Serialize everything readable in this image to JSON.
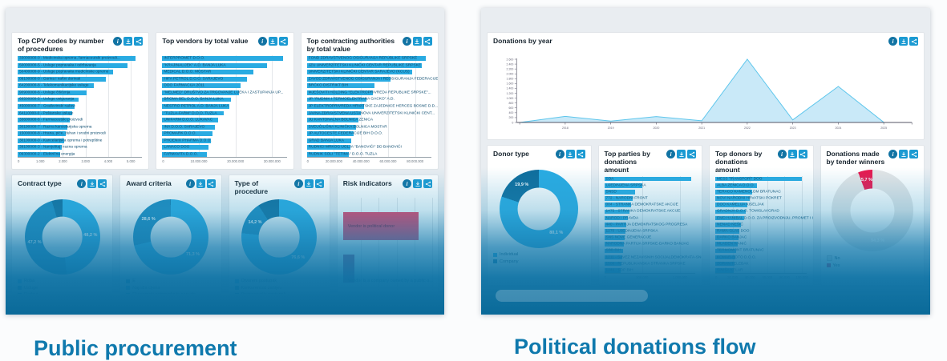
{
  "page": {
    "left_heading": "Public procurement",
    "right_heading": "Political donations flow"
  },
  "icons": {
    "info": "info-icon",
    "download": "download-icon",
    "share": "share-icon"
  },
  "chart_data": {
    "cpv": {
      "type": "hbar",
      "title": "Top CPV codes by number of procedures",
      "bar_color": "#29abe2",
      "axis_max": 5500,
      "ticks": [
        {
          "label": "0",
          "value": 0
        },
        {
          "label": "1.000",
          "value": 1000
        },
        {
          "label": "2.000",
          "value": 2000
        },
        {
          "label": "3.000",
          "value": 3000
        },
        {
          "label": "4.000",
          "value": 4000
        },
        {
          "label": "5.000",
          "value": 5000
        }
      ],
      "items": [
        {
          "label": "33000000-0 - Medicinska oprema, farmaceutski proizvodi...",
          "value": 5200
        },
        {
          "label": "50000000-5 - Usluge popravaka i održavanja",
          "value": 4850
        },
        {
          "label": "50400000-9 - Usluge popravaka medicinske opreme",
          "value": 4200
        },
        {
          "label": "09100000-0 - Goriva i naftni derivati",
          "value": 3900
        },
        {
          "label": "64200000-8 - Telekomunikacijske usluge",
          "value": 3350
        },
        {
          "label": "90900000-6 - Usluge čišćenja",
          "value": 3050
        },
        {
          "label": "66500000-5 - Usluge osiguranja",
          "value": 2700
        },
        {
          "label": "45000000-7 - Građevinski radovi",
          "value": 2500
        },
        {
          "label": "64110000-0 - Poštanske usluge",
          "value": 2400
        },
        {
          "label": "33600000-6 - Farmaceutski proizvodi",
          "value": 2300
        },
        {
          "label": "30190000-7 - Razna kancelarijska oprema",
          "value": 2200
        },
        {
          "label": "15000000-8 - Hrana, piće, duhan i srodni proizvodi",
          "value": 2120
        },
        {
          "label": "30100000-0 - Kancelarijska oprema i potrepštine",
          "value": 2040
        },
        {
          "label": "39100000-3 - Namještaj i razna oprema",
          "value": 1960
        },
        {
          "label": "09300000-2 - Električna energija",
          "value": 1880
        }
      ]
    },
    "vendors": {
      "type": "hbar",
      "title": "Top vendors by total value",
      "bar_color": "#29abe2",
      "axis_max": 34000000,
      "ticks": [
        {
          "label": "0",
          "value": 0
        },
        {
          "label": "10.000.000",
          "value": 10000000
        },
        {
          "label": "20.000.000",
          "value": 20000000
        },
        {
          "label": "30.000.000",
          "value": 30000000
        }
      ],
      "items": [
        {
          "label": "INTERPROMET D.O.O.",
          "value": 33000000
        },
        {
          "label": "\"KRAJINALIJEK\" A.D. BANJA LUKA",
          "value": 28500000
        },
        {
          "label": "MEDICAL D.O.O. MOSTAR",
          "value": 24800000
        },
        {
          "label": "HIFA PETROL D.O.O. SARAJEVO",
          "value": 23200000
        },
        {
          "label": "DOO FARMACIJA 2011",
          "value": 21300000
        },
        {
          "label": "\"MELMED\" DRUŠTVO ZA TRGOVANJE LIJEKA I ZASTUPANJA UP...",
          "value": 20900000
        },
        {
          "label": "BROMA BEL D.O.O. BANJA LUKA",
          "value": 18800000
        },
        {
          "label": "NESTRO PETROL A.D. BANJA LUKA",
          "value": 18400000
        },
        {
          "label": "\"TUZLA-FARM\" D.O.O. TUZLA",
          "value": 16800000
        },
        {
          "label": "UNIFARM D.O.O. LUKAVAC",
          "value": 15200000
        },
        {
          "label": "INA D.O.O. SARAJEVO",
          "value": 14400000
        },
        {
          "label": "PROMARK D.O.O.",
          "value": 13800000
        },
        {
          "label": "PHOENIX PHARMA D.O.O.",
          "value": 13200000
        },
        {
          "label": "LANACO DOO",
          "value": 12700000
        },
        {
          "label": "FARMAVITA D.O.O.",
          "value": 12200000
        }
      ]
    },
    "authorities": {
      "type": "hbar",
      "title": "Top contracting authorities by total value",
      "bar_color": "#29abe2",
      "axis_max": 92000000,
      "ticks": [
        {
          "label": "0",
          "value": 0
        },
        {
          "label": "20.000.000",
          "value": 20000000
        },
        {
          "label": "40.000.000",
          "value": 40000000
        },
        {
          "label": "60.000.000",
          "value": 60000000
        },
        {
          "label": "80.000.000",
          "value": 80000000
        }
      ],
      "items": [
        {
          "label": "FOND ZDRAVSTVENOG OSIGURANJA REPUBLIKE SRPSKE",
          "value": 88000000
        },
        {
          "label": "JZU UNIVERZITETSKI KLINIČKI CENTAR REPUBLIKE SRPSKE",
          "value": 85000000
        },
        {
          "label": "UNIVERZITETSKI KLINIČKI CENTAR SARAJEVO (KCUS)",
          "value": 78000000
        },
        {
          "label": "ZAVOD ZDRAVSTVENOG OSIGURANJA I REOSIGURANJA FEDERACIJE...",
          "value": 62000000
        },
        {
          "label": "BRČKO DISTRIKT BIH",
          "value": 50000000
        },
        {
          "label": "MJEŠOVITI HOLDING \"ELEKTROPRIVREDA REPUBLIKE SRPSKE\"...",
          "value": 48500000
        },
        {
          "label": "JP \"RUDNIK I TERMOELEKTRANA GACKO\" A.D.",
          "value": 44000000
        },
        {
          "label": "JP ELEKTROPRIVREDA HRVATSKE ZAJEDNICE HERCEG BOSNE D.D...",
          "value": 42000000
        },
        {
          "label": "JAVNA ZDRAVSTVENA USTANOVA UNIVERZITETSKI KLINIČKI CENT...",
          "value": 40000000
        },
        {
          "label": "JU KANTONALNA BOLNICA ZENICA",
          "value": 38000000
        },
        {
          "label": "SVEUČILIŠNA KLINIČKA BOLNICA MOSTAR",
          "value": 36500000
        },
        {
          "label": "JP AUTOCESTE FEDERACIJE BIH D.O.O.",
          "value": 34500000
        },
        {
          "label": "GRAD BANJA LUKA",
          "value": 33000000
        },
        {
          "label": "RUDNICI MRKOG UGLJA \"BANOVIĆI\" DD BANOVIĆI",
          "value": 32000000
        },
        {
          "label": "RUDNIK SOLI \"TETIMA\" D.O.O. TUZLA",
          "value": 31000000
        }
      ]
    },
    "contract": {
      "type": "donut",
      "title": "Contract type",
      "size": 94,
      "slices": [
        {
          "label": "Roba",
          "value": 48.2,
          "color": "#29abe2",
          "show_label": true
        },
        {
          "label": "Usluge",
          "value": 47.2,
          "color": "#1b89bd",
          "show_label": true
        },
        {
          "label": "Radovi",
          "value": 4.6,
          "color": "#0f6d9c",
          "show_label": false
        }
      ]
    },
    "award": {
      "type": "donut",
      "title": "Award criteria",
      "size": 94,
      "slices": [
        {
          "label": "Najniža cijena",
          "value": 71.3,
          "color": "#29abe2",
          "show_label": true
        },
        {
          "label": "Ekonomski najpovoljnija ponuda",
          "value": 28.6,
          "color": "#1b89bd",
          "show_label": true
        },
        {
          "label": "E",
          "value": 0.1,
          "color": "#0f6d9c",
          "show_label": false
        }
      ],
      "legend": [
        {
          "label": "E",
          "color": "#0f6d9c"
        },
        {
          "label": "Najniža cijena",
          "color": "#29abe2"
        },
        {
          "label": "Ekonomski najpovoljnija ponuda",
          "color": "#1b89bd"
        }
      ]
    },
    "procedure": {
      "type": "donut",
      "title": "Type of procedure",
      "size": 94,
      "slices": [
        {
          "label": "Otvoreni postupak",
          "value": 76.6,
          "color": "#29abe2",
          "show_label": true
        },
        {
          "label": "Konkurentski zahtjev",
          "value": 14.2,
          "color": "#1b89bd",
          "show_label": true
        },
        {
          "label": "Pregovarački postupak...",
          "value": 9.2,
          "color": "#0f6d9c",
          "show_label": false
        }
      ]
    },
    "risk": {
      "type": "risk",
      "title": "Risk indicators",
      "axis_max": 100,
      "rows": [
        {
          "label": "Vendor is political donor",
          "value": 85,
          "color": "#ee3a60",
          "label_color": "#6e1130"
        },
        {
          "label": "Vendor is a company owned by a public o...",
          "value": 13,
          "color": "#a44a80",
          "label_color": "#0d3a54"
        }
      ]
    },
    "year": {
      "type": "area",
      "title": "Donations by year",
      "fill": "#c9e9f8",
      "line": "#5ec6ec",
      "y_max": 2600,
      "y_ticks": [
        {
          "label": "0",
          "value": 0
        },
        {
          "label": "200",
          "value": 200
        },
        {
          "label": "400",
          "value": 400
        },
        {
          "label": "600",
          "value": 600
        },
        {
          "label": "800",
          "value": 800
        },
        {
          "label": "1.000",
          "value": 1000
        },
        {
          "label": "1.200",
          "value": 1200
        },
        {
          "label": "1.400",
          "value": 1400
        },
        {
          "label": "1.600",
          "value": 1600
        },
        {
          "label": "1.800",
          "value": 1800
        },
        {
          "label": "2.000",
          "value": 2000
        },
        {
          "label": "2.200",
          "value": 2200
        },
        {
          "label": "2.400",
          "value": 2400
        },
        {
          "label": "2.600",
          "value": 2600
        }
      ],
      "points": [
        {
          "year": "2017",
          "value": 0,
          "show_label": false
        },
        {
          "year": "2018",
          "value": 250,
          "show_label": true
        },
        {
          "year": "2019",
          "value": 55,
          "show_label": true
        },
        {
          "year": "2020",
          "value": 245,
          "show_label": true
        },
        {
          "year": "2021",
          "value": 70,
          "show_label": true
        },
        {
          "year": "2022",
          "value": 2600,
          "show_label": true
        },
        {
          "year": "2023",
          "value": 105,
          "show_label": true
        },
        {
          "year": "2024",
          "value": 1480,
          "show_label": true
        },
        {
          "year": "2025",
          "value": 5,
          "show_label": true
        }
      ]
    },
    "donor": {
      "type": "donut",
      "title": "Donor type",
      "size": 98,
      "slices": [
        {
          "label": "Individual",
          "value": 80.1,
          "color": "#29abe2",
          "show_label": true
        },
        {
          "label": "Company",
          "value": 19.9,
          "color": "#0f6d9c",
          "show_label": true
        }
      ]
    },
    "parties": {
      "type": "hbar",
      "title": "Top parties by donations amount",
      "bar_color": "#29abe2",
      "axis_max": 1200000,
      "ticks": [
        {
          "label": "0",
          "value": 0
        },
        {
          "label": "500.000",
          "value": 500000
        },
        {
          "label": "1.000.000",
          "value": 1000000
        }
      ],
      "items": [
        {
          "label": "SDA",
          "value": 1150000
        },
        {
          "label": "UJEDINJENA SRPSKA",
          "value": 500000
        },
        {
          "label": "SNSD",
          "value": 410000
        },
        {
          "label": "772 - NARODNI FRONT",
          "value": 380000
        },
        {
          "label": "004 - STRANKA DEMOKRATSKE AKCIJE",
          "value": 350000
        },
        {
          "label": "1475 - STRANKA DEMOKRATSKE AKCIJE",
          "value": 330000
        },
        {
          "label": "NAROD I PRAVDA",
          "value": 310000
        },
        {
          "label": "440 - PARTIJA DEMOKRATSKOG PROGRESA",
          "value": 295000
        },
        {
          "label": "1270 - UJEDINJENA SRPSKA",
          "value": 280000
        },
        {
          "label": "SNS NOVE GENERACIJE",
          "value": 265000
        },
        {
          "label": "NARODNA PARTIJA SRPSKE-DARKO BANJAC",
          "value": 255000
        },
        {
          "label": "SBB BIH",
          "value": 245000
        },
        {
          "label": "1211 - SAVEZ NEZAVISNIH SOCIJALDEMOKRATA-SNSD",
          "value": 235000
        },
        {
          "label": "1508 - REPUBLIKANSKA STRANKA SRPSKE",
          "value": 225000
        },
        {
          "label": "1444 - SDP BIH",
          "value": 215000
        }
      ]
    },
    "donors": {
      "type": "hbar",
      "title": "Top donors by donations amount",
      "bar_color": "#29abe2",
      "axis_max": 105000,
      "ticks": [
        {
          "label": "0",
          "value": 0
        },
        {
          "label": "20.000",
          "value": 20000
        },
        {
          "label": "40.000",
          "value": 40000
        },
        {
          "label": "60.000",
          "value": 60000
        },
        {
          "label": "80.000",
          "value": 80000
        },
        {
          "label": "100.000",
          "value": 100000
        }
      ],
      "items": [
        {
          "label": "MESS TRANSPORT DOO",
          "value": 100000
        },
        {
          "label": "ALBA ZENICA D.O.O.",
          "value": 48000
        },
        {
          "label": "TERACO KAMENOLOM BRATUNAC",
          "value": 43000
        },
        {
          "label": "NOVI NARODNI HRVATSKI POKRET",
          "value": 40000
        },
        {
          "label": "DOO KAMELIJA KISELJAK",
          "value": 37000
        },
        {
          "label": "GRADNJA D.O.O. TOMISLAVGRAD",
          "value": 35000
        },
        {
          "label": "EMD HANIBAL D.O.O. ZA PROIZVODNJU, PROMET I U...",
          "value": 33000
        },
        {
          "label": "NENAD NEŠIĆ",
          "value": 30000
        },
        {
          "label": "RAMA-GLAS DOO",
          "value": 28000
        },
        {
          "label": "DARKO BANJAC",
          "value": 26500
        },
        {
          "label": "MLADEN IVANIĆ",
          "value": 25500
        },
        {
          "label": "TERMOMONT BRATUNAC",
          "value": 24500
        },
        {
          "label": "KOMAR-BOTO D.O.O.",
          "value": 23500
        },
        {
          "label": "ZORAN TELEBAK",
          "value": 22500
        },
        {
          "label": "SINIŠA KELAR",
          "value": 21500
        }
      ]
    },
    "winners": {
      "type": "donut",
      "title": "Donations made by tender winners",
      "size": 102,
      "slices": [
        {
          "label": "No",
          "value": 94.3,
          "color": "#e4e5e6",
          "show_label": true,
          "label_color": "rgba(255,255,255,0.9)",
          "swatch_border": true
        },
        {
          "label": "Yes",
          "value": 5.7,
          "color": "#e8174e",
          "show_label": true,
          "label_color": "#ffffff"
        }
      ]
    }
  }
}
